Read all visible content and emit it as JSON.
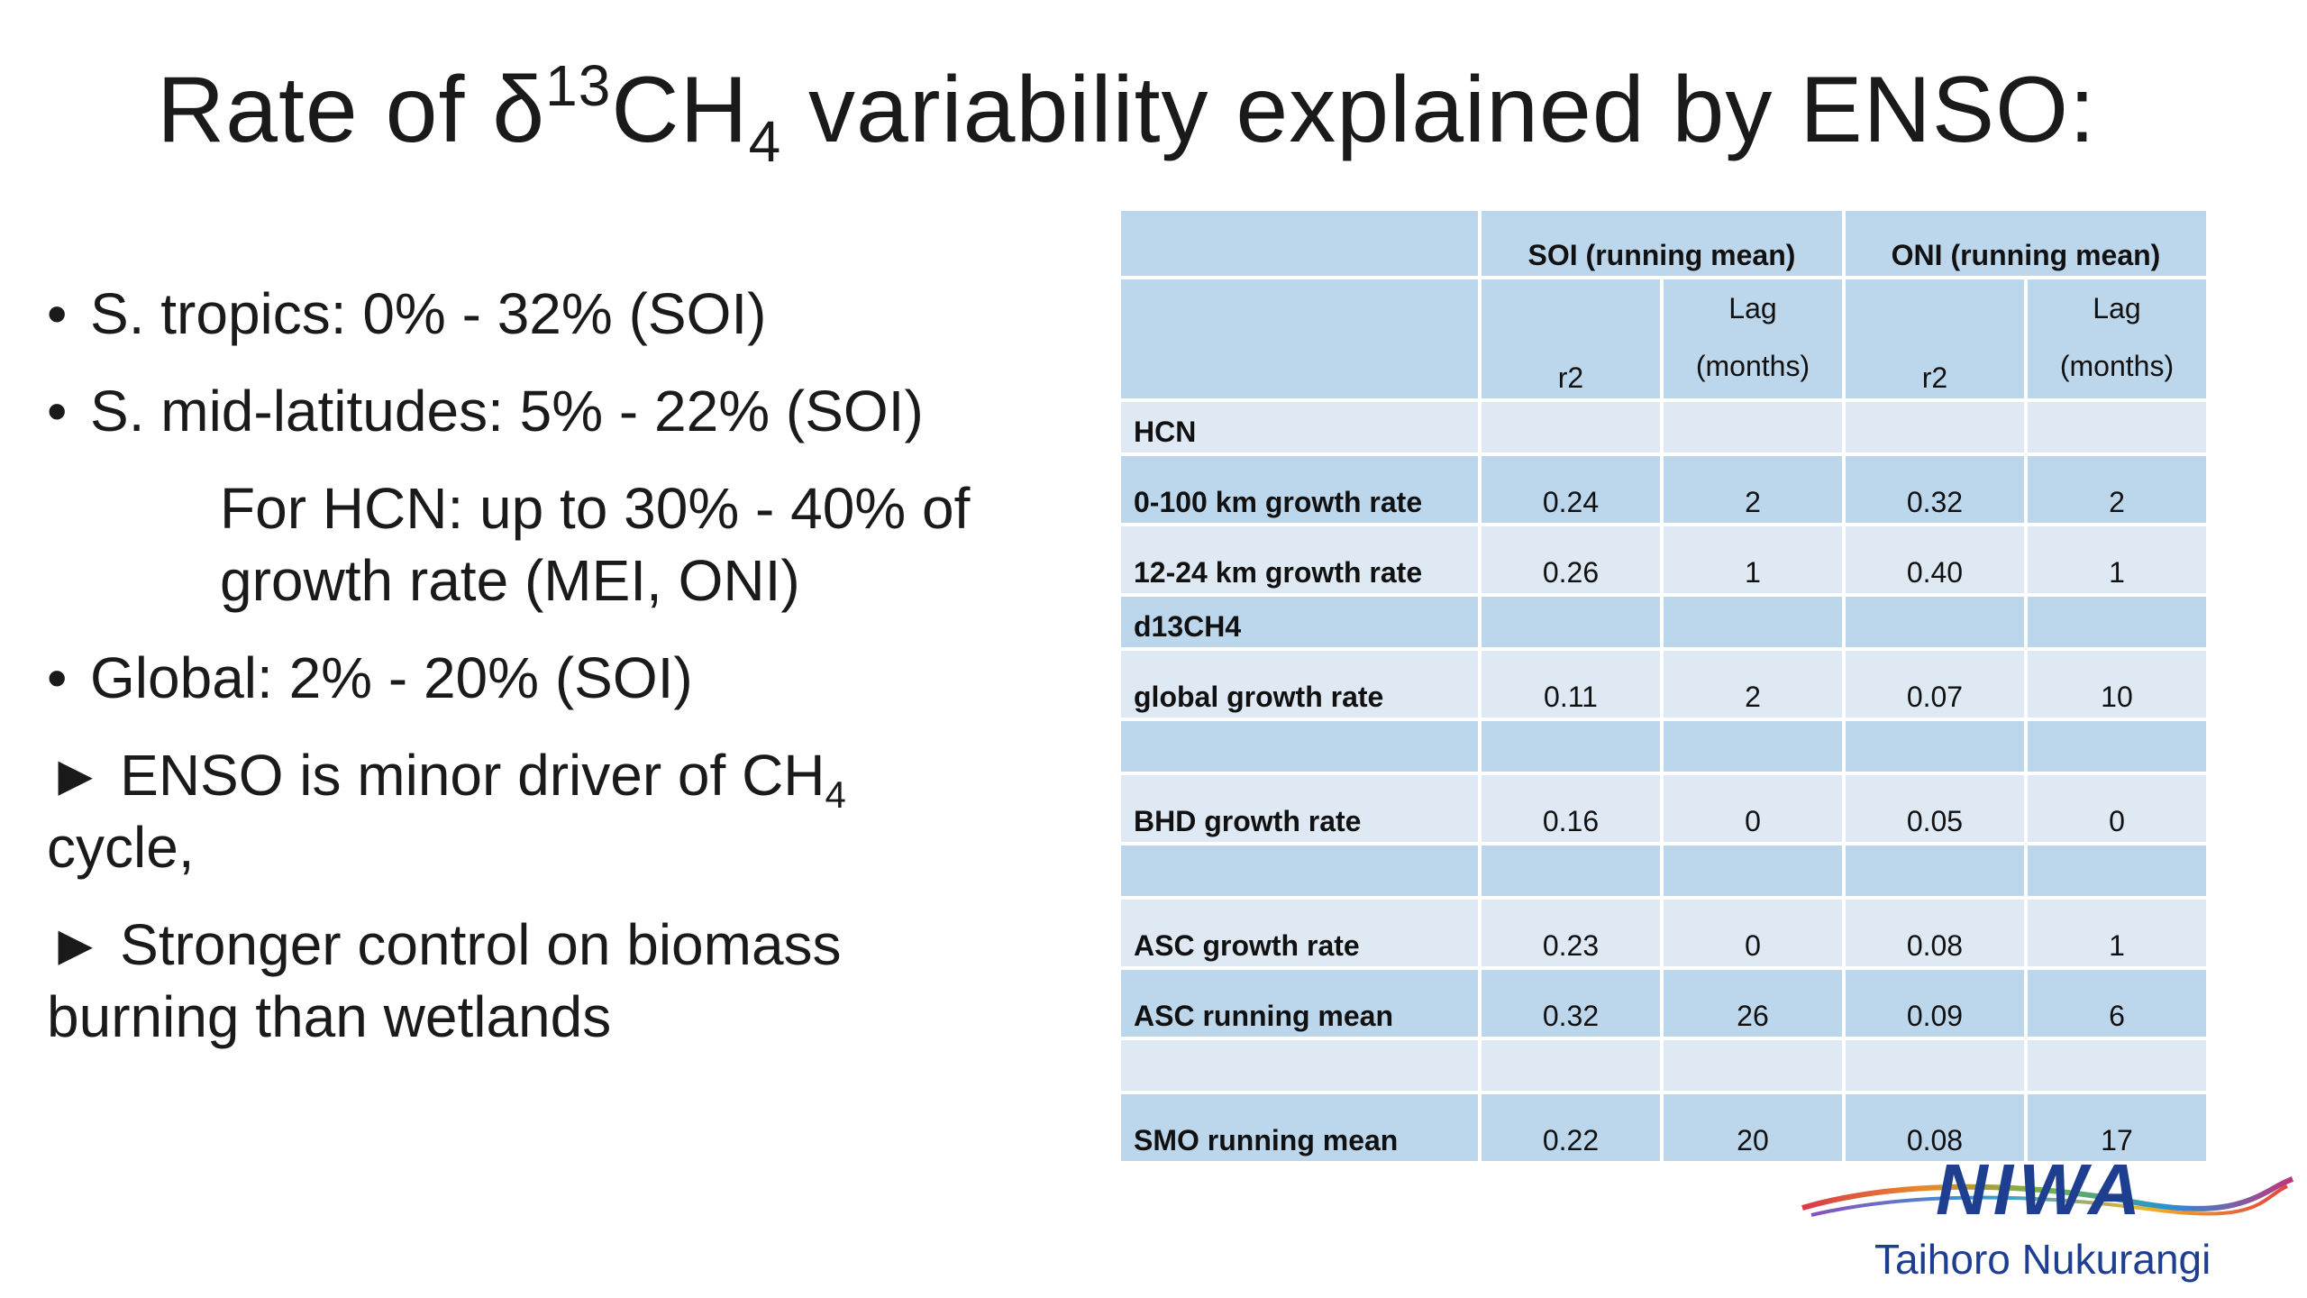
{
  "title": {
    "part1": "Rate of δ",
    "sup": "13",
    "part2": "CH",
    "sub": "4",
    "part3": " variability explained by ENSO:"
  },
  "bullets": {
    "b1": "S. tropics: 0% - 32% (SOI)",
    "b2": "S. mid-latitudes: 5% - 22% (SOI)",
    "b3_line1": "For HCN: up to 30% - 40% of",
    "b3_line2": "growth rate (MEI, ONI)",
    "b4": "Global: 2% - 20% (SOI)",
    "b5_line1_pre": "ENSO is minor driver of CH",
    "b5_sub": "4",
    "b5_line2": "cycle,",
    "b6_line1": "Stronger control on biomass",
    "b6_line2": "burning than wetlands",
    "bullet_glyph": "•",
    "arrow_glyph": "►"
  },
  "table": {
    "group_headers": [
      "SOI (running mean)",
      "ONI (running mean)"
    ],
    "sub_headers": {
      "r2": "r2",
      "lag_top": "Lag",
      "lag_bottom": "(months)"
    },
    "rows": [
      {
        "label": "HCN",
        "soi_r2": "",
        "soi_lag": "",
        "oni_r2": "",
        "oni_lag": ""
      },
      {
        "label": "0-100 km growth rate",
        "soi_r2": "0.24",
        "soi_lag": "2",
        "oni_r2": "0.32",
        "oni_lag": "2"
      },
      {
        "label": "12-24 km growth rate",
        "soi_r2": "0.26",
        "soi_lag": "1",
        "oni_r2": "0.40",
        "oni_lag": "1"
      },
      {
        "label": "d13CH4",
        "soi_r2": "",
        "soi_lag": "",
        "oni_r2": "",
        "oni_lag": ""
      },
      {
        "label": "global growth rate",
        "soi_r2": "0.11",
        "soi_lag": "2",
        "oni_r2": "0.07",
        "oni_lag": "10"
      },
      {
        "label": "",
        "soi_r2": "",
        "soi_lag": "",
        "oni_r2": "",
        "oni_lag": ""
      },
      {
        "label": "BHD growth rate",
        "soi_r2": "0.16",
        "soi_lag": "0",
        "oni_r2": "0.05",
        "oni_lag": "0"
      },
      {
        "label": "",
        "soi_r2": "",
        "soi_lag": "",
        "oni_r2": "",
        "oni_lag": ""
      },
      {
        "label": "ASC growth rate",
        "soi_r2": "0.23",
        "soi_lag": "0",
        "oni_r2": "0.08",
        "oni_lag": "1"
      },
      {
        "label": "ASC running mean",
        "soi_r2": "0.32",
        "soi_lag": "26",
        "oni_r2": "0.09",
        "oni_lag": "6"
      },
      {
        "label": "",
        "soi_r2": "",
        "soi_lag": "",
        "oni_r2": "",
        "oni_lag": ""
      },
      {
        "label": "SMO running mean",
        "soi_r2": "0.22",
        "soi_lag": "20",
        "oni_r2": "0.08",
        "oni_lag": "17"
      }
    ]
  },
  "logo": {
    "word": "NIWA",
    "subtitle": "Taihoro Nukurangi"
  },
  "colors": {
    "cell_dark": "#bcd6ec",
    "cell_light": "#dfe9f4",
    "logo_blue": "#1e3f8f"
  }
}
